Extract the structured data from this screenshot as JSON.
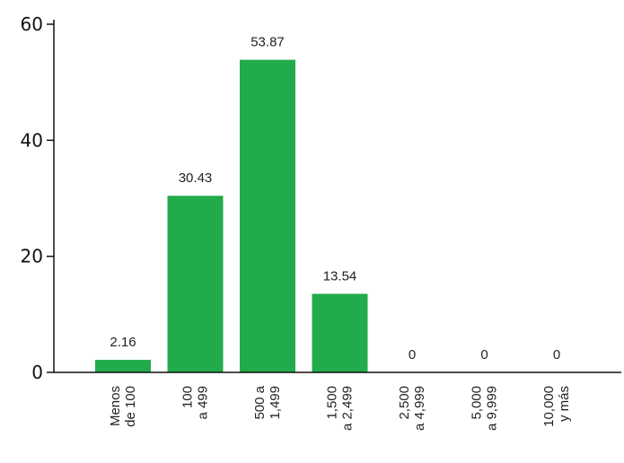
{
  "chart_data": {
    "type": "bar",
    "categories": [
      [
        "Menos",
        "de 100"
      ],
      [
        "100",
        "a 499"
      ],
      [
        "500 a",
        "1,499"
      ],
      [
        "1,500",
        "a 2,499"
      ],
      [
        "2,500",
        "a 4,999"
      ],
      [
        "5,000",
        "a 9,999"
      ],
      [
        "10,000",
        "y más"
      ]
    ],
    "values": [
      2.16,
      30.43,
      53.87,
      13.54,
      0,
      0,
      0
    ],
    "data_labels": [
      "2.16",
      "30.43",
      "53.87",
      "13.54",
      "0",
      "0",
      "0"
    ],
    "yticks": [
      0,
      20,
      40,
      60
    ],
    "ylim": [
      0,
      60
    ],
    "title": "",
    "xlabel": "",
    "ylabel": "",
    "grid": false,
    "bar_color": "#22ab4a"
  }
}
